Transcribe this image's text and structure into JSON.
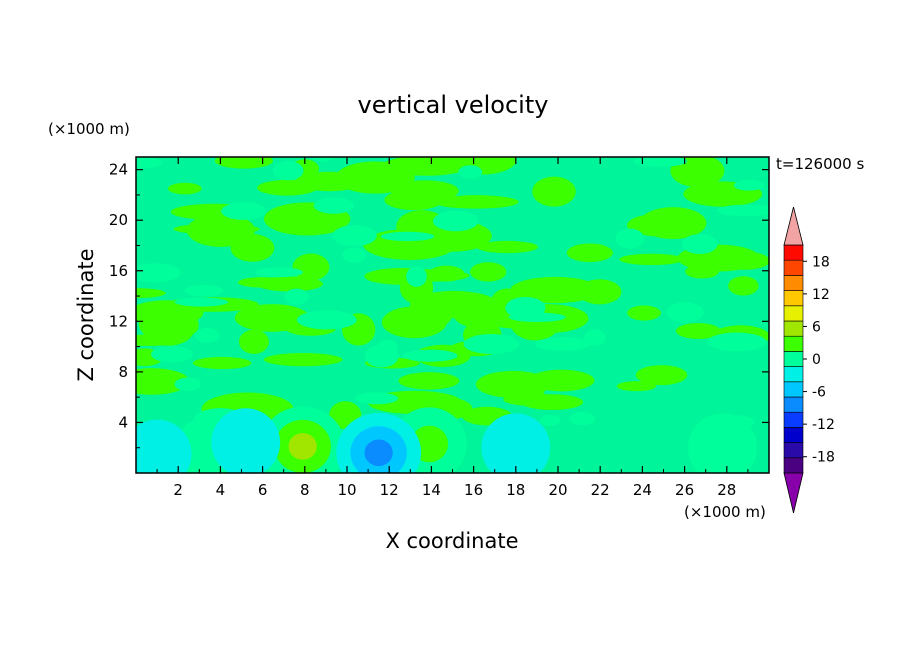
{
  "chart_data": {
    "type": "heatmap",
    "title": "vertical velocity",
    "xlabel": "X coordinate",
    "ylabel": "Z coordinate",
    "x_unit": "(×1000 m)",
    "y_unit": "(×1000 m)",
    "time_label": "t=126000 s",
    "xlim": [
      0,
      30
    ],
    "ylim": [
      0,
      25
    ],
    "xticks": [
      2,
      4,
      6,
      8,
      10,
      12,
      14,
      16,
      18,
      20,
      22,
      24,
      26,
      28
    ],
    "yticks": [
      4,
      8,
      12,
      16,
      20,
      24
    ],
    "colorbar": {
      "levels": [
        -21,
        -18,
        -15,
        -12,
        -9,
        -6,
        -3,
        0,
        3,
        6,
        9,
        12,
        15,
        18,
        21
      ],
      "tick_labels": [
        "18",
        "12",
        "6",
        "0",
        "-6",
        "-12",
        "-18"
      ],
      "tick_values": [
        18,
        12,
        6,
        0,
        -6,
        -12,
        -18
      ],
      "colors": [
        "#4b0082",
        "#2a0aa8",
        "#0000cd",
        "#0a3cff",
        "#0a8cff",
        "#00c8ff",
        "#00f0e6",
        "#00ff9a",
        "#3cff00",
        "#a0e600",
        "#e6f000",
        "#ffc800",
        "#ff8c00",
        "#ff4600",
        "#ff0a00"
      ],
      "under_color": "#8800aa",
      "over_color": "#f2a3a3"
    },
    "features": [
      {
        "type": "updraft",
        "x": 7.9,
        "z": 2.1,
        "peak": 9
      },
      {
        "type": "updraft",
        "x": 13.9,
        "z": 2.3,
        "peak": 6
      },
      {
        "type": "updraft",
        "x": 27.8,
        "z": 2.0,
        "peak": 4
      },
      {
        "type": "updraft",
        "x": 3.4,
        "z": 1.8,
        "peak": 3
      },
      {
        "type": "downdraft",
        "x": 11.5,
        "z": 1.6,
        "peak": -9
      },
      {
        "type": "downdraft",
        "x": 5.2,
        "z": 2.4,
        "peak": -4
      },
      {
        "type": "downdraft",
        "x": 18.0,
        "z": 2.0,
        "peak": -4
      },
      {
        "type": "downdraft",
        "x": 1.0,
        "z": 1.5,
        "peak": -4
      }
    ]
  }
}
